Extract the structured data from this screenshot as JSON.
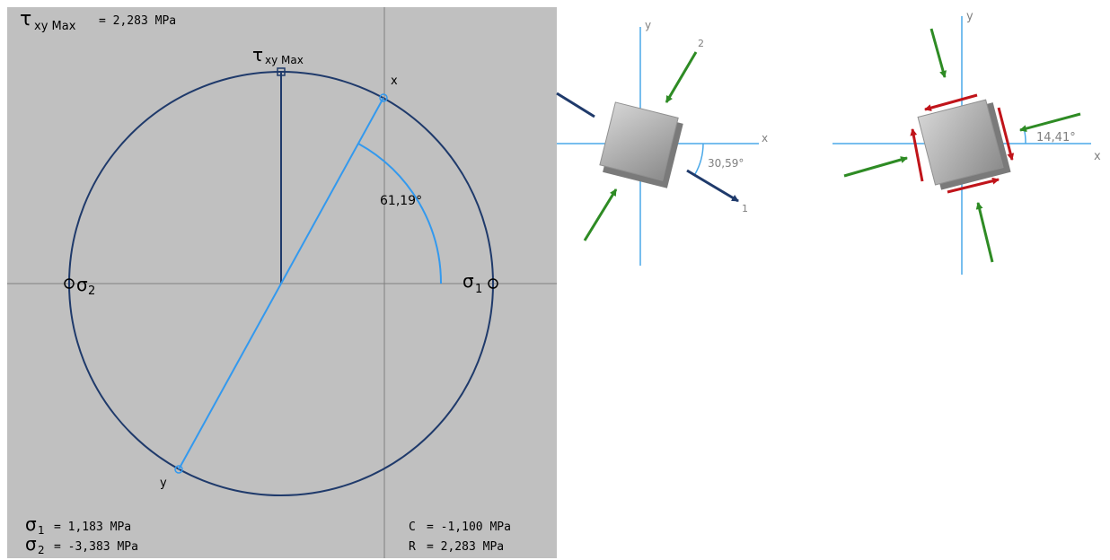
{
  "mohr": {
    "tau_max_symbol": "τ",
    "tau_max_sub": "xy Max",
    "tau_max_eq": "= 2,283 MPa",
    "tau_label_symbol": "τ",
    "tau_label_sub": "xy Max",
    "sigma2_symbol": "σ",
    "sigma2_sub": "2",
    "sigma1_symbol": "σ",
    "sigma1_sub": "1",
    "point_x": "x",
    "point_y": "y",
    "angle": "61,19°",
    "sigma1_eq": "= 1,183 MPa",
    "sigma2_eq": "= -3,383 MPa",
    "c_label": "C",
    "c_eq": "= -1,100 MPa",
    "r_label": "R",
    "r_eq": "= 2,283 MPa"
  },
  "principal": {
    "axis_x": "x",
    "axis_y": "y",
    "dir1": "1",
    "dir2": "2",
    "angle": "30,59°"
  },
  "shear": {
    "axis_x": "x",
    "axis_y": "y",
    "angle": "14,41°"
  },
  "colors": {
    "panel_bg": "#c0c0c0",
    "circle": "#1f3a6b",
    "diameter": "#3399ee",
    "green_arrow": "#2e8b24",
    "red_arrow": "#c0141a",
    "axis_blue": "#4aa8e8"
  }
}
